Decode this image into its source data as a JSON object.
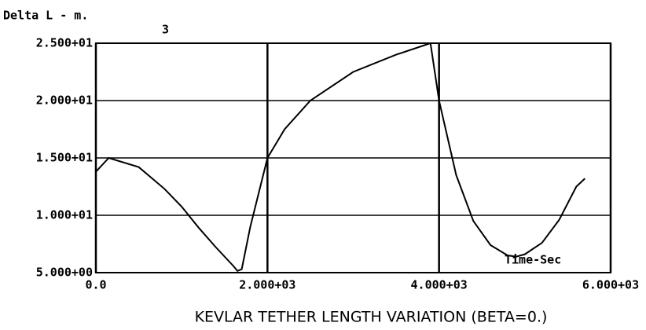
{
  "chart_data": {
    "type": "line",
    "title": "KEVLAR TETHER LENGTH VARIATION (BETA=0.)",
    "y_axis_label": "Delta L - m.",
    "plot_number": "3",
    "annotation": "Time-Sec",
    "x": [
      0,
      150,
      500,
      800,
      1000,
      1200,
      1400,
      1600,
      1650,
      1700,
      1800,
      1900,
      2000,
      2200,
      2500,
      3000,
      3500,
      3900,
      4000,
      4200,
      4400,
      4600,
      4800,
      4900,
      5000,
      5200,
      5400,
      5600,
      5700
    ],
    "series": [
      {
        "name": "Delta L",
        "color": "#000000",
        "values": [
          13.8,
          15.0,
          14.2,
          12.3,
          10.75,
          8.9,
          7.2,
          5.6,
          5.15,
          5.3,
          9.0,
          12.0,
          15.0,
          17.5,
          20.0,
          22.5,
          24.0,
          25.0,
          20.0,
          13.5,
          9.5,
          7.4,
          6.5,
          6.4,
          6.6,
          7.6,
          9.6,
          12.5,
          13.2
        ]
      }
    ],
    "xlim": [
      0,
      6000
    ],
    "xticks": [
      {
        "value": 0,
        "label": "0.0"
      },
      {
        "value": 2000,
        "label": "2.000+03"
      },
      {
        "value": 4000,
        "label": "4.000+03"
      },
      {
        "value": 6000,
        "label": "6.000+03"
      }
    ],
    "ylim": [
      5,
      25
    ],
    "yticks": [
      {
        "value": 5,
        "label": "5.000+00"
      },
      {
        "value": 10,
        "label": "1.000+01"
      },
      {
        "value": 15,
        "label": "1.500+01"
      },
      {
        "value": 20,
        "label": "2.000+01"
      },
      {
        "value": 25,
        "label": "2.500+01"
      }
    ],
    "grid": true
  }
}
